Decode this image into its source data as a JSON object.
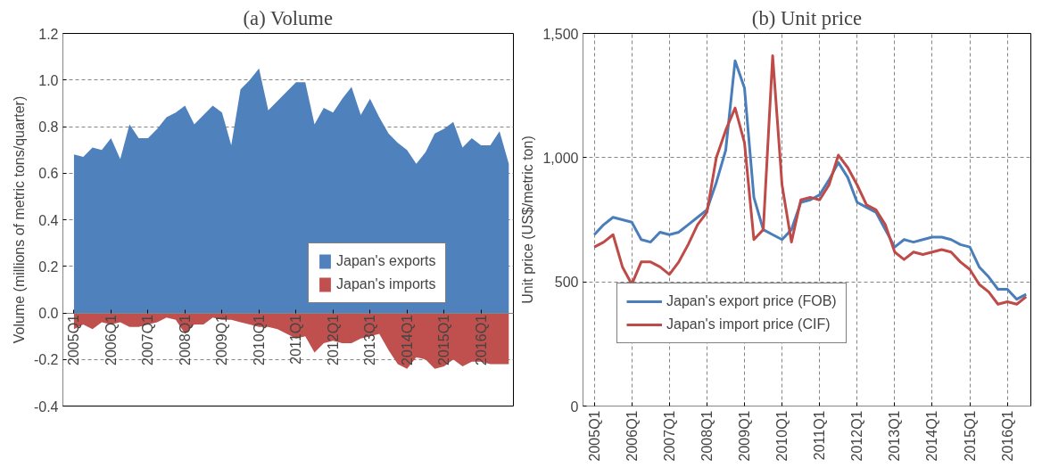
{
  "chart_data": [
    {
      "type": "area",
      "title": "(a) Volume",
      "ylabel": "Volume (millions of metric tons/quarter)",
      "categories": [
        "2005Q1",
        null,
        null,
        null,
        "2006Q1",
        null,
        null,
        null,
        "2007Q1",
        null,
        null,
        null,
        "2008Q1",
        null,
        null,
        null,
        "2009Q1",
        null,
        null,
        null,
        "2010Q1",
        null,
        null,
        null,
        "2011Q1",
        null,
        null,
        null,
        "2012Q1",
        null,
        null,
        null,
        "2013Q1",
        null,
        null,
        null,
        "2014Q1",
        null,
        null,
        null,
        "2015Q1",
        null,
        null,
        null,
        "2016Q1",
        null,
        null,
        null
      ],
      "series": [
        {
          "name": "Japan's exports",
          "color": "#4f81bd",
          "values": [
            0.68,
            0.67,
            0.71,
            0.7,
            0.75,
            0.66,
            0.81,
            0.75,
            0.75,
            0.79,
            0.84,
            0.86,
            0.89,
            0.81,
            0.85,
            0.89,
            0.86,
            0.72,
            0.96,
            1.0,
            1.05,
            0.87,
            0.91,
            0.95,
            0.99,
            0.99,
            0.81,
            0.88,
            0.86,
            0.92,
            0.97,
            0.85,
            0.92,
            0.84,
            0.77,
            0.73,
            0.7,
            0.64,
            0.69,
            0.77,
            0.79,
            0.82,
            0.71,
            0.75,
            0.72,
            0.72,
            0.78,
            0.64
          ]
        },
        {
          "name": "Japan's imports",
          "color": "#c0504d",
          "values": [
            -0.07,
            -0.05,
            -0.07,
            -0.04,
            -0.05,
            -0.04,
            -0.06,
            -0.06,
            -0.05,
            -0.04,
            -0.02,
            -0.03,
            -0.09,
            -0.05,
            -0.05,
            -0.02,
            -0.03,
            -0.03,
            -0.04,
            -0.05,
            -0.06,
            -0.06,
            -0.07,
            -0.09,
            -0.11,
            -0.1,
            -0.17,
            -0.13,
            -0.12,
            -0.13,
            -0.13,
            -0.11,
            -0.1,
            -0.09,
            -0.16,
            -0.22,
            -0.24,
            -0.19,
            -0.2,
            -0.24,
            -0.23,
            -0.2,
            -0.23,
            -0.21,
            -0.21,
            -0.22,
            -0.22,
            -0.22
          ]
        }
      ],
      "ylim": [
        -0.4,
        1.2
      ],
      "yticks": [
        {
          "value": -0.4,
          "label": "-0.4"
        },
        {
          "value": -0.2,
          "label": "-0.2"
        },
        {
          "value": 0,
          "label": "0.0"
        },
        {
          "value": 0.2,
          "label": "0.2"
        },
        {
          "value": 0.4,
          "label": "0.4"
        },
        {
          "value": 0.6,
          "label": "0.6"
        },
        {
          "value": 0.8,
          "label": "0.8"
        },
        {
          "value": 1,
          "label": "1.0"
        },
        {
          "value": 1.2,
          "label": "1.2"
        }
      ],
      "grid": "y",
      "legend": "right"
    },
    {
      "type": "line",
      "title": "(b) Unit price",
      "ylabel": "Unit price (US$/metric ton)",
      "categories": [
        "2005Q1",
        null,
        null,
        null,
        "2006Q1",
        null,
        null,
        null,
        "2007Q1",
        null,
        null,
        null,
        "2008Q1",
        null,
        null,
        null,
        "2009Q1",
        null,
        null,
        null,
        "2010Q1",
        null,
        null,
        null,
        "2011Q1",
        null,
        null,
        null,
        "2012Q1",
        null,
        null,
        null,
        "2013Q1",
        null,
        null,
        null,
        "2014Q1",
        null,
        null,
        null,
        "2015Q1",
        null,
        null,
        null,
        "2016Q1",
        null,
        null
      ],
      "series": [
        {
          "name": "Japan's export price (FOB)",
          "color": "#4a7ebb",
          "values": [
            690,
            730,
            760,
            750,
            740,
            670,
            660,
            700,
            690,
            700,
            730,
            760,
            790,
            900,
            1030,
            1390,
            1280,
            840,
            710,
            690,
            670,
            710,
            820,
            830,
            850,
            910,
            980,
            920,
            820,
            800,
            780,
            710,
            640,
            670,
            660,
            670,
            680,
            680,
            670,
            650,
            640,
            560,
            520,
            470,
            470,
            430,
            450
          ]
        },
        {
          "name": "Japan's import price (CIF)",
          "color": "#be4b48",
          "values": [
            640,
            660,
            690,
            560,
            490,
            580,
            580,
            560,
            530,
            580,
            650,
            730,
            780,
            1000,
            1110,
            1200,
            1060,
            670,
            710,
            1410,
            890,
            660,
            830,
            840,
            830,
            890,
            1010,
            960,
            890,
            810,
            790,
            730,
            620,
            590,
            620,
            610,
            620,
            630,
            620,
            580,
            550,
            490,
            460,
            410,
            420,
            410,
            440
          ]
        }
      ],
      "ylim": [
        0,
        1500
      ],
      "yticks": [
        0,
        500,
        {
          "value": 1000,
          "label": "1,000"
        },
        {
          "value": 1500,
          "label": "1,500"
        }
      ],
      "grid": true,
      "legend": "bottom left",
      "line_style": "solid",
      "marker": "none"
    }
  ]
}
